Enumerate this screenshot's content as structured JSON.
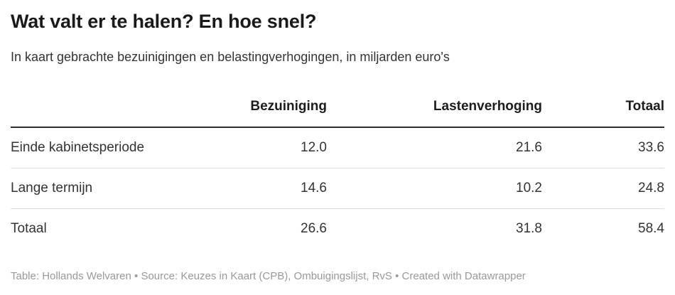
{
  "header": {
    "title": "Wat valt er te halen? En hoe snel?",
    "subtitle": "In kaart gebrachte bezuinigingen en belastingverhogingen, in miljarden euro's"
  },
  "table": {
    "columns": [
      "",
      "Bezuiniging",
      "Lastenverhoging",
      "Totaal"
    ],
    "rows": [
      {
        "label": "Einde kabinetsperiode",
        "values": [
          "12.0",
          "21.6",
          "33.6"
        ]
      },
      {
        "label": "Lange termijn",
        "values": [
          "14.6",
          "10.2",
          "24.8"
        ]
      },
      {
        "label": "Totaal",
        "values": [
          "26.6",
          "31.8",
          "58.4"
        ]
      }
    ]
  },
  "footer": {
    "byline_label": "Table:",
    "byline": "Hollands Welvaren",
    "separator": "•",
    "source_label": "Source:",
    "source": "Keuzes in Kaart (CPB), Ombuigingslijst, RvS",
    "created_label": "Created with",
    "tool": "Datawrapper"
  },
  "colors": {
    "title": "#1a1a1a",
    "subtitle": "#333333",
    "header": "#1d1d1d",
    "header_rule": "#2e2e2e",
    "body": "#333333",
    "row_rule": "#dddddd",
    "footer": "#999999"
  },
  "chart_data": {
    "type": "table",
    "title": "Wat valt er te halen? En hoe snel?",
    "subtitle": "In kaart gebrachte bezuinigingen en belastingverhogingen, in miljarden euro's",
    "columns": [
      "",
      "Bezuiniging",
      "Lastenverhoging",
      "Totaal"
    ],
    "rows": [
      [
        "Einde kabinetsperiode",
        12.0,
        21.6,
        33.6
      ],
      [
        "Lange termijn",
        14.6,
        10.2,
        24.8
      ],
      [
        "Totaal",
        26.6,
        31.8,
        58.4
      ]
    ]
  }
}
